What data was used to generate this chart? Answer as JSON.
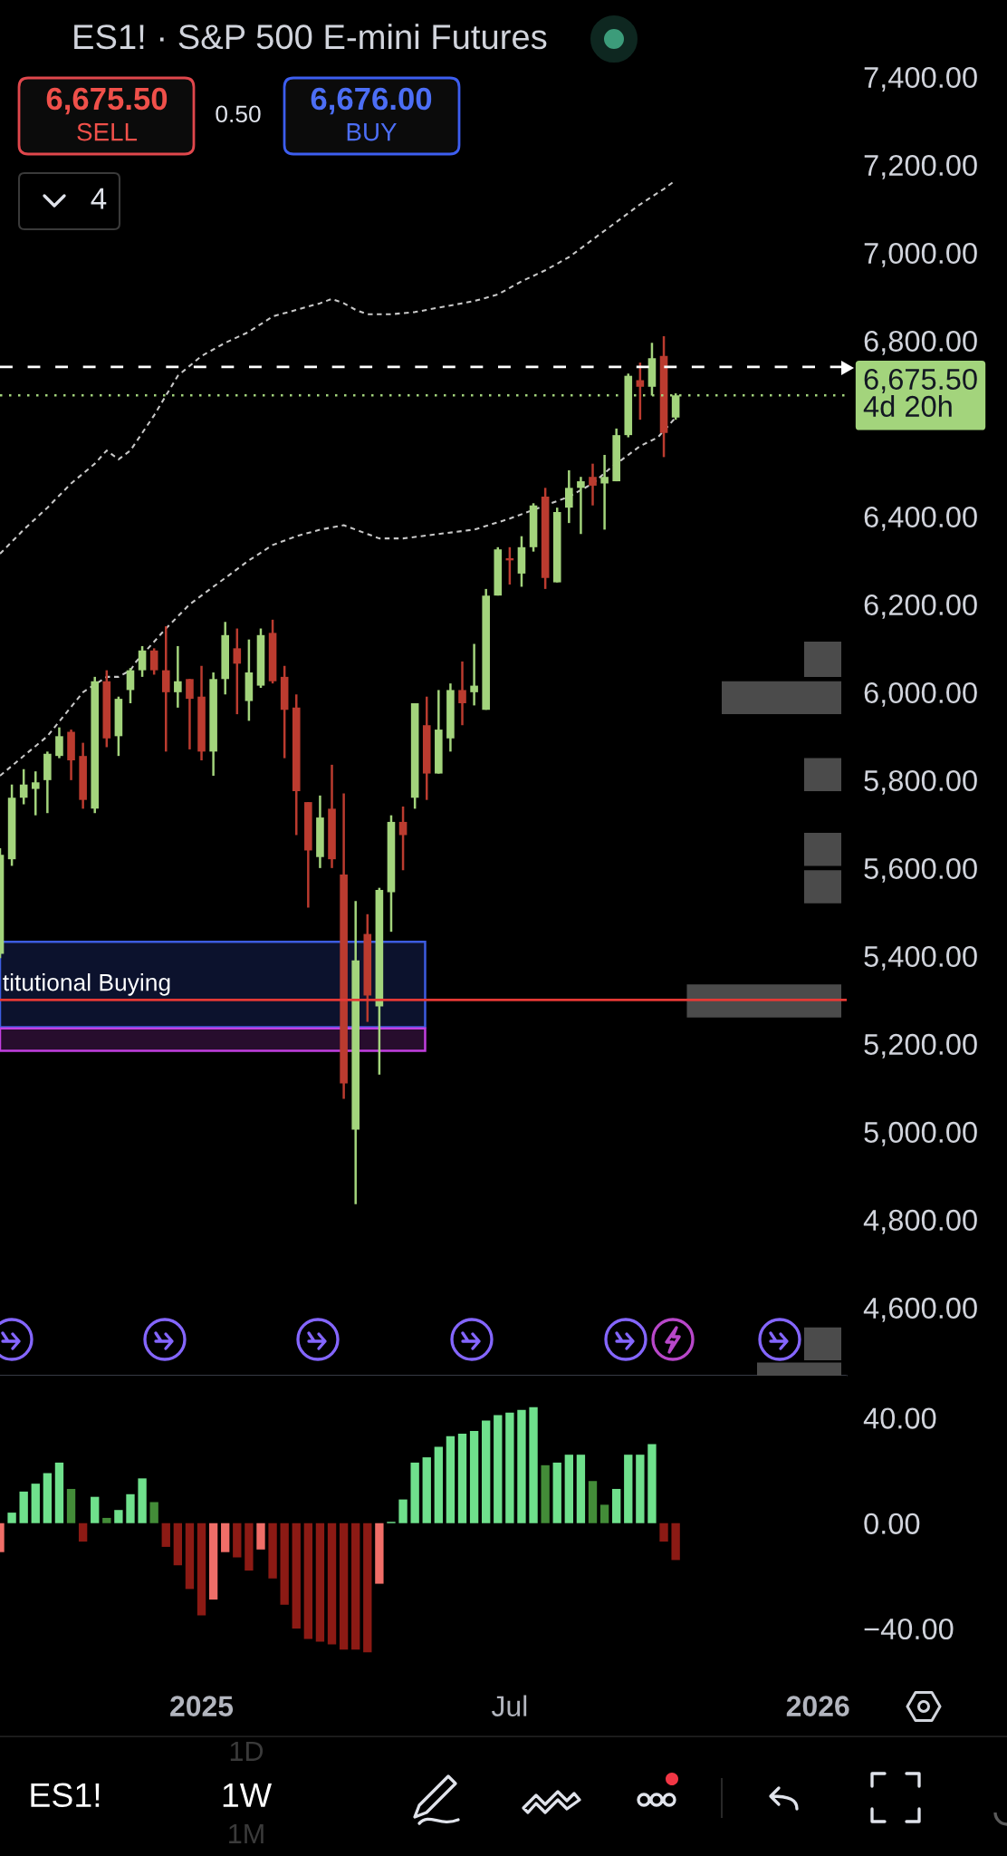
{
  "chart_data": [
    {
      "type": "candlestick",
      "title": "ES1! · S&P 500 E-mini Futures",
      "x": [
        "2024-09-09",
        "2024-09-16",
        "2024-09-23",
        "2024-09-30",
        "2024-10-07",
        "2024-10-14",
        "2024-10-21",
        "2024-10-28",
        "2024-11-04",
        "2024-11-11",
        "2024-11-18",
        "2024-11-25",
        "2024-12-02",
        "2024-12-09",
        "2024-12-16",
        "2024-12-23",
        "2024-12-30",
        "2025-01-06",
        "2025-01-13",
        "2025-01-20",
        "2025-01-27",
        "2025-02-03",
        "2025-02-10",
        "2025-02-17",
        "2025-02-24",
        "2025-03-03",
        "2025-03-10",
        "2025-03-17",
        "2025-03-24",
        "2025-03-31",
        "2025-04-07",
        "2025-04-14",
        "2025-04-21",
        "2025-04-28",
        "2025-05-05",
        "2025-05-12",
        "2025-05-19",
        "2025-05-26",
        "2025-06-02",
        "2025-06-09",
        "2025-06-16",
        "2025-06-23",
        "2025-06-30",
        "2025-07-07",
        "2025-07-14",
        "2025-07-21",
        "2025-07-28",
        "2025-08-04",
        "2025-08-11",
        "2025-08-18",
        "2025-08-25",
        "2025-09-01",
        "2025-09-08",
        "2025-09-15",
        "2025-09-22",
        "2025-09-29",
        "2025-10-06",
        "2025-10-13"
      ],
      "ohlc": [
        [
          5405,
          5645,
          5395,
          5630
        ],
        [
          5620,
          5790,
          5605,
          5760
        ],
        [
          5760,
          5825,
          5745,
          5790
        ],
        [
          5780,
          5820,
          5720,
          5795
        ],
        [
          5800,
          5865,
          5725,
          5860
        ],
        [
          5855,
          5920,
          5850,
          5900
        ],
        [
          5910,
          5915,
          5800,
          5845
        ],
        [
          5855,
          5885,
          5735,
          5755
        ],
        [
          5735,
          6035,
          5725,
          6025
        ],
        [
          6025,
          6050,
          5875,
          5895
        ],
        [
          5900,
          5990,
          5855,
          5985
        ],
        [
          6005,
          6055,
          5975,
          6050
        ],
        [
          6050,
          6105,
          6035,
          6095
        ],
        [
          6095,
          6100,
          6040,
          6050
        ],
        [
          6050,
          6150,
          5865,
          6000
        ],
        [
          6000,
          6105,
          5965,
          6025
        ],
        [
          6030,
          6030,
          5870,
          5985
        ],
        [
          5990,
          6060,
          5845,
          5865
        ],
        [
          5865,
          6045,
          5810,
          6030
        ],
        [
          6030,
          6160,
          5995,
          6130
        ],
        [
          6100,
          6145,
          5950,
          6065
        ],
        [
          5980,
          6120,
          5935,
          6045
        ],
        [
          6015,
          6145,
          6010,
          6130
        ],
        [
          6135,
          6165,
          6020,
          6025
        ],
        [
          6035,
          6060,
          5850,
          5960
        ],
        [
          5965,
          5995,
          5675,
          5775
        ],
        [
          5750,
          5750,
          5510,
          5640
        ],
        [
          5625,
          5765,
          5600,
          5715
        ],
        [
          5735,
          5835,
          5600,
          5620
        ],
        [
          5585,
          5770,
          5075,
          5110
        ],
        [
          5005,
          5525,
          4835,
          5390
        ],
        [
          5450,
          5495,
          5250,
          5310
        ],
        [
          5285,
          5555,
          5130,
          5550
        ],
        [
          5545,
          5720,
          5455,
          5705
        ],
        [
          5705,
          5740,
          5595,
          5675
        ],
        [
          5760,
          5975,
          5735,
          5975
        ],
        [
          5925,
          5990,
          5755,
          5815
        ],
        [
          5815,
          6005,
          5815,
          5915
        ],
        [
          5895,
          6020,
          5865,
          6005
        ],
        [
          6005,
          6070,
          5925,
          5975
        ],
        [
          6000,
          6110,
          5970,
          6015
        ],
        [
          5960,
          6235,
          5960,
          6220
        ],
        [
          6220,
          6330,
          6220,
          6325
        ],
        [
          6305,
          6330,
          6245,
          6300
        ],
        [
          6270,
          6355,
          6240,
          6330
        ],
        [
          6330,
          6430,
          6320,
          6425
        ],
        [
          6445,
          6465,
          6235,
          6260
        ],
        [
          6250,
          6420,
          6250,
          6410
        ],
        [
          6420,
          6505,
          6385,
          6465
        ],
        [
          6465,
          6490,
          6360,
          6480
        ],
        [
          6490,
          6520,
          6425,
          6470
        ],
        [
          6475,
          6540,
          6370,
          6490
        ],
        [
          6480,
          6600,
          6480,
          6585
        ],
        [
          6585,
          6725,
          6580,
          6720
        ],
        [
          6710,
          6750,
          6620,
          6695
        ],
        [
          6695,
          6795,
          6675,
          6760
        ],
        [
          6765,
          6810,
          6535,
          6590
        ],
        [
          6625,
          6680,
          6620,
          6675.5
        ]
      ],
      "colors": [
        "#a3d47c",
        "#a3d47c",
        "#a3d47c",
        "#a3d47c",
        "#a3d47c",
        "#a3d47c",
        "#bb3b2f",
        "#bb3b2f",
        "#a3d47c",
        "#bb3b2f",
        "#a3d47c",
        "#a3d47c",
        "#a3d47c",
        "#bb3b2f",
        "#bb3b2f",
        "#a3d47c",
        "#bb3b2f",
        "#bb3b2f",
        "#a3d47c",
        "#a3d47c",
        "#bb3b2f",
        "#a3d47c",
        "#a3d47c",
        "#bb3b2f",
        "#bb3b2f",
        "#bb3b2f",
        "#bb3b2f",
        "#a3d47c",
        "#bb3b2f",
        "#bb3b2f",
        "#a3d47c",
        "#bb3b2f",
        "#a3d47c",
        "#a3d47c",
        "#bb3b2f",
        "#a3d47c",
        "#bb3b2f",
        "#a3d47c",
        "#a3d47c",
        "#bb3b2f",
        "#a3d47c",
        "#a3d47c",
        "#a3d47c",
        "#bb3b2f",
        "#a3d47c",
        "#a3d47c",
        "#bb3b2f",
        "#a3d47c",
        "#a3d47c",
        "#a3d47c",
        "#bb3b2f",
        "#a3d47c",
        "#a3d47c",
        "#a3d47c",
        "#bb3b2f",
        "#a3d47c",
        "#bb3b2f",
        "#a3d47c"
      ],
      "series": [
        {
          "type": "line",
          "color": "#c8c8c8",
          "line_style": "dashed",
          "x": [
            "2024-09-09",
            "2024-09-23",
            "2024-10-07",
            "2024-10-21",
            "2024-11-04",
            "2024-11-11",
            "2024-11-18",
            "2024-11-25",
            "2024-12-02",
            "2024-12-09",
            "2024-12-16",
            "2024-12-23",
            "2025-01-06",
            "2025-01-20",
            "2025-02-03",
            "2025-02-17",
            "2025-03-03",
            "2025-03-17",
            "2025-03-24",
            "2025-03-31",
            "2025-04-07",
            "2025-04-14",
            "2025-04-28",
            "2025-05-12",
            "2025-05-26",
            "2025-06-16",
            "2025-06-30",
            "2025-07-14",
            "2025-07-28",
            "2025-08-11",
            "2025-08-25",
            "2025-09-08",
            "2025-09-22",
            "2025-10-06",
            "2025-10-13"
          ],
          "values": [
            6315,
            6370,
            6420,
            6475,
            6520,
            6550,
            6530,
            6550,
            6590,
            6630,
            6675,
            6720,
            6765,
            6795,
            6820,
            6855,
            6870,
            6885,
            6895,
            6885,
            6870,
            6860,
            6860,
            6865,
            6875,
            6890,
            6905,
            6935,
            6960,
            6990,
            7030,
            7070,
            7110,
            7145,
            7165
          ]
        },
        {
          "type": "line",
          "color": "#c8c8c8",
          "line_style": "dashed",
          "x": [
            "2024-09-09",
            "2024-10-07",
            "2024-10-28",
            "2024-11-11",
            "2024-11-18",
            "2024-11-25",
            "2024-11-28T12:00",
            "2024-12-16",
            "2024-12-30",
            "2025-01-06",
            "2025-01-20",
            "2025-02-03",
            "2025-02-17",
            "2025-03-03",
            "2025-03-17",
            "2025-03-31",
            "2025-04-07",
            "2025-04-21",
            "2025-05-05",
            "2025-05-26",
            "2025-06-16",
            "2025-07-07",
            "2025-07-31T12:00",
            "2025-08-11",
            "2025-08-25",
            "2025-09-04T12:00",
            "2025-09-22",
            "2025-10-02T12:00",
            "2025-10-13"
          ],
          "values": [
            5810,
            5900,
            6000,
            6035,
            6035,
            6050,
            6070,
            6145,
            6200,
            6220,
            6260,
            6300,
            6335,
            6355,
            6370,
            6380,
            6370,
            6350,
            6350,
            6360,
            6370,
            6395,
            6430,
            6445,
            6475,
            6510,
            6560,
            6580,
            6625
          ]
        }
      ],
      "xlim": [
        "2024-09-09",
        "2026-01-22"
      ],
      "ylim": [
        4445,
        7575
      ],
      "yticks": [
        {
          "value": 4600,
          "label": "4,600.00"
        },
        {
          "value": 4800,
          "label": "4,800.00"
        },
        {
          "value": 5000,
          "label": "5,000.00"
        },
        {
          "value": 5200,
          "label": "5,200.00"
        },
        {
          "value": 5400,
          "label": "5,400.00"
        },
        {
          "value": 5600,
          "label": "5,600.00"
        },
        {
          "value": 5800,
          "label": "5,800.00"
        },
        {
          "value": 6000,
          "label": "6,000.00"
        },
        {
          "value": 6200,
          "label": "6,200.00"
        },
        {
          "value": 6400,
          "label": "6,400.00"
        },
        {
          "value": 6800,
          "label": "6,800.00"
        },
        {
          "value": 7000,
          "label": "7,000.00"
        },
        {
          "value": 7200,
          "label": "7,200.00"
        },
        {
          "value": 7400,
          "label": "7,400.00"
        }
      ],
      "tick_labels": "y",
      "ref_lines": [
        {
          "axis": "y",
          "value": 6740,
          "color": "#ffffff",
          "line_style": "dashed"
        },
        {
          "axis": "y",
          "value": 6675.5,
          "label": "6,675.50\n4d 20h",
          "color": "#a3d47c",
          "line_style": "dotted"
        },
        {
          "axis": "y",
          "value": 5300,
          "color": "#e53935"
        }
      ],
      "bands": [
        {
          "axis": "y",
          "from": 5238,
          "to": 5432,
          "label": "titutional Buying",
          "color": "#3d5ce0"
        },
        {
          "axis": "y",
          "from": 5184,
          "to": 5235,
          "color": "#c23fe0"
        },
        {
          "axis": "y",
          "from": 6035,
          "to": 6115,
          "color": "#4b4b4b"
        },
        {
          "axis": "y",
          "from": 5950,
          "to": 6025,
          "color": "#4b4b4b"
        },
        {
          "axis": "y",
          "from": 5775,
          "to": 5850,
          "color": "#4b4b4b"
        },
        {
          "axis": "y",
          "from": 5605,
          "to": 5680,
          "color": "#4b4b4b"
        },
        {
          "axis": "y",
          "from": 5520,
          "to": 5595,
          "color": "#4b4b4b"
        },
        {
          "axis": "y",
          "from": 5260,
          "to": 5335,
          "color": "#4b4b4b"
        },
        {
          "axis": "y",
          "from": 4480,
          "to": 4555,
          "color": "#4b4b4b"
        },
        {
          "axis": "y",
          "from": 4445,
          "to": 4475,
          "color": "#4b4b4b"
        }
      ],
      "annotations": [
        "6,675.50",
        "SELL",
        "0.50",
        "6,676.00",
        "BUY",
        "4",
        "ES1!",
        "1W",
        "1D",
        "1M"
      ]
    },
    {
      "type": "bar",
      "x": [
        "2024-09-09",
        "2024-09-16",
        "2024-09-23",
        "2024-09-30",
        "2024-10-07",
        "2024-10-14",
        "2024-10-21",
        "2024-10-28",
        "2024-11-04",
        "2024-11-11",
        "2024-11-18",
        "2024-11-25",
        "2024-12-02",
        "2024-12-09",
        "2024-12-16",
        "2024-12-23",
        "2024-12-30",
        "2025-01-06",
        "2025-01-13",
        "2025-01-20",
        "2025-01-27",
        "2025-02-03",
        "2025-02-10",
        "2025-02-17",
        "2025-02-24",
        "2025-03-03",
        "2025-03-10",
        "2025-03-17",
        "2025-03-24",
        "2025-03-31",
        "2025-04-07",
        "2025-04-14",
        "2025-04-21",
        "2025-04-28",
        "2025-05-05",
        "2025-05-12",
        "2025-05-19",
        "2025-05-26",
        "2025-06-02",
        "2025-06-09",
        "2025-06-16",
        "2025-06-23",
        "2025-06-30",
        "2025-07-07",
        "2025-07-14",
        "2025-07-21",
        "2025-07-28",
        "2025-08-04",
        "2025-08-11",
        "2025-08-18",
        "2025-08-25",
        "2025-09-01",
        "2025-09-08",
        "2025-09-15",
        "2025-09-22",
        "2025-09-29",
        "2025-10-06",
        "2025-10-13"
      ],
      "values": [
        -11,
        4,
        12,
        15,
        19,
        23,
        13,
        -7,
        10,
        2,
        5,
        11,
        17,
        8,
        -9,
        -16,
        -25,
        -35,
        -29,
        -11,
        -13,
        -18,
        -10,
        -21,
        -31,
        -40,
        -44,
        -45,
        -46,
        -48,
        -48,
        -49,
        -23,
        0.5,
        9,
        23,
        25,
        29,
        33,
        34,
        35,
        39,
        41,
        42,
        43,
        44,
        22,
        23,
        26,
        26,
        16,
        7,
        13,
        26,
        26,
        30,
        -7,
        -14
      ],
      "colors": [
        "#f06e68",
        "#6fe08c",
        "#6fe08c",
        "#6fe08c",
        "#6fe08c",
        "#6fe08c",
        "#438c38",
        "#8c1a14",
        "#6fe08c",
        "#438c38",
        "#6fe08c",
        "#6fe08c",
        "#6fe08c",
        "#438c38",
        "#8c1a14",
        "#8c1a14",
        "#8c1a14",
        "#8c1a14",
        "#f06e68",
        "#f06e68",
        "#8c1a14",
        "#8c1a14",
        "#f06e68",
        "#8c1a14",
        "#8c1a14",
        "#8c1a14",
        "#8c1a14",
        "#8c1a14",
        "#8c1a14",
        "#8c1a14",
        "#8c1a14",
        "#8c1a14",
        "#f06e68",
        "#6fe08c",
        "#6fe08c",
        "#6fe08c",
        "#6fe08c",
        "#6fe08c",
        "#6fe08c",
        "#6fe08c",
        "#6fe08c",
        "#6fe08c",
        "#6fe08c",
        "#6fe08c",
        "#6fe08c",
        "#6fe08c",
        "#438c38",
        "#6fe08c",
        "#6fe08c",
        "#6fe08c",
        "#438c38",
        "#438c38",
        "#6fe08c",
        "#6fe08c",
        "#6fe08c",
        "#6fe08c",
        "#8c1a14",
        "#8c1a14"
      ],
      "xlim": [
        "2024-09-09",
        "2026-01-22"
      ],
      "ylim": [
        -61,
        56
      ],
      "xticks": [
        {
          "value": "2025-01-06",
          "label": "2025"
        },
        {
          "value": "2025-07-07",
          "label": "Jul"
        },
        {
          "value": "2026-01-05",
          "label": "2026"
        }
      ],
      "yticks": [
        {
          "value": 40,
          "label": "40.00"
        },
        {
          "value": 0,
          "label": "0.00"
        },
        {
          "value": -40,
          "label": "−40.00"
        }
      ]
    }
  ]
}
